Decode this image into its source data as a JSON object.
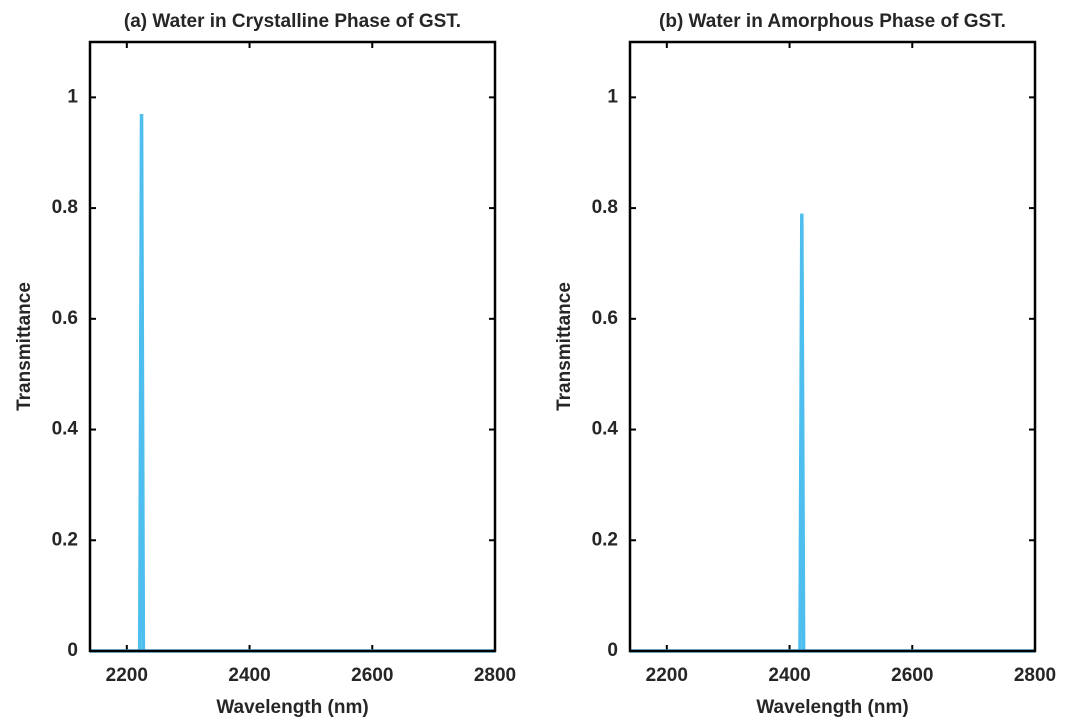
{
  "chart_data": [
    {
      "type": "line",
      "title": "(a) Water in Crystalline Phase of GST.",
      "xlabel": "Wavelength (nm)",
      "ylabel": "Transmittance",
      "series": [
        {
          "name": "Transmittance",
          "color": "#4dbeee",
          "x": [
            2140,
            2221,
            2224,
            2227,
            2800
          ],
          "values": [
            0,
            0,
            0.97,
            0,
            0
          ]
        }
      ],
      "xlim": [
        2140,
        2800
      ],
      "xticks": [
        2200,
        2400,
        2600,
        2800
      ],
      "ylim": [
        0,
        1.1
      ],
      "yticks": [
        0,
        0.2,
        0.4,
        0.6,
        0.8,
        1
      ]
    },
    {
      "type": "line",
      "title": "(b) Water in Amorphous Phase of GST.",
      "xlabel": "Wavelength (nm)",
      "ylabel": "Transmittance",
      "series": [
        {
          "name": "Transmittance",
          "color": "#4dbeee",
          "x": [
            2140,
            2417,
            2420,
            2423,
            2800
          ],
          "values": [
            0,
            0,
            0.79,
            0,
            0
          ]
        }
      ],
      "xlim": [
        2140,
        2800
      ],
      "xticks": [
        2200,
        2400,
        2600,
        2800
      ],
      "ylim": [
        0,
        1.1
      ],
      "yticks": [
        0,
        0.2,
        0.4,
        0.6,
        0.8,
        1
      ]
    }
  ]
}
